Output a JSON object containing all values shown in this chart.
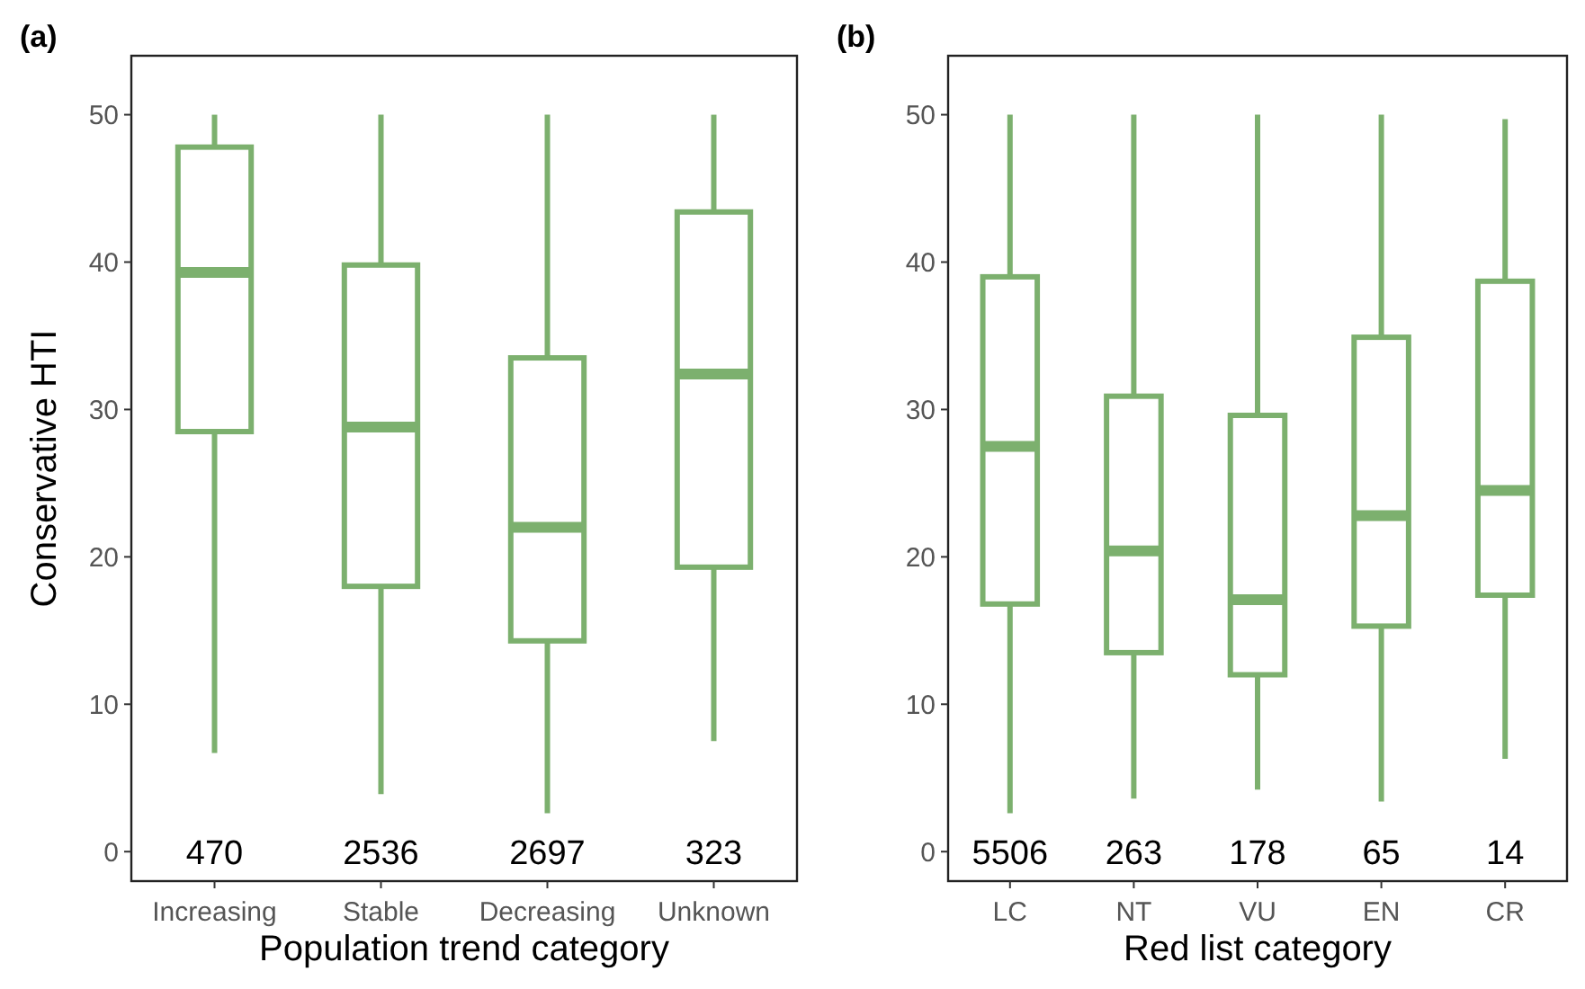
{
  "chart_data": [
    {
      "type": "box",
      "title": "(a)",
      "xlabel": "Population trend category",
      "ylabel": "Conservative HTI",
      "categories": [
        "Increasing",
        "Stable",
        "Decreasing",
        "Unknown"
      ],
      "color": "#7cb06e",
      "ylim": [
        -2,
        54
      ],
      "yticks": [
        0,
        10,
        20,
        30,
        40,
        50
      ],
      "grid": false,
      "boxes": [
        {
          "low": 6.7,
          "q1": 28.5,
          "median": 39.3,
          "q3": 47.8,
          "high": 50
        },
        {
          "low": 3.9,
          "q1": 18,
          "median": 28.8,
          "q3": 39.8,
          "high": 50
        },
        {
          "low": 2.6,
          "q1": 14.3,
          "median": 22,
          "q3": 33.5,
          "high": 50
        },
        {
          "low": 7.5,
          "q1": 19.3,
          "median": 32.4,
          "q3": 43.4,
          "high": 50
        }
      ],
      "annotations": [
        "470",
        "2536",
        "2697",
        "323"
      ]
    },
    {
      "type": "box",
      "title": "(b)",
      "xlabel": "Red list category",
      "categories": [
        "LC",
        "NT",
        "VU",
        "EN",
        "CR"
      ],
      "color": "#7cb06e",
      "ylim": [
        -2,
        54
      ],
      "yticks": [
        0,
        10,
        20,
        30,
        40,
        50
      ],
      "grid": false,
      "boxes": [
        {
          "low": 2.6,
          "q1": 16.8,
          "median": 27.5,
          "q3": 39,
          "high": 50
        },
        {
          "low": 3.6,
          "q1": 13.5,
          "median": 20.4,
          "q3": 30.9,
          "high": 50
        },
        {
          "low": 4.2,
          "q1": 12,
          "median": 17.1,
          "q3": 29.6,
          "high": 50
        },
        {
          "low": 3.4,
          "q1": 15.3,
          "median": 22.8,
          "q3": 34.9,
          "high": 50
        },
        {
          "low": 6.3,
          "q1": 17.4,
          "median": 24.5,
          "q3": 38.7,
          "high": 49.7
        }
      ],
      "annotations": [
        "5506",
        "263",
        "178",
        "65",
        "14"
      ]
    }
  ]
}
